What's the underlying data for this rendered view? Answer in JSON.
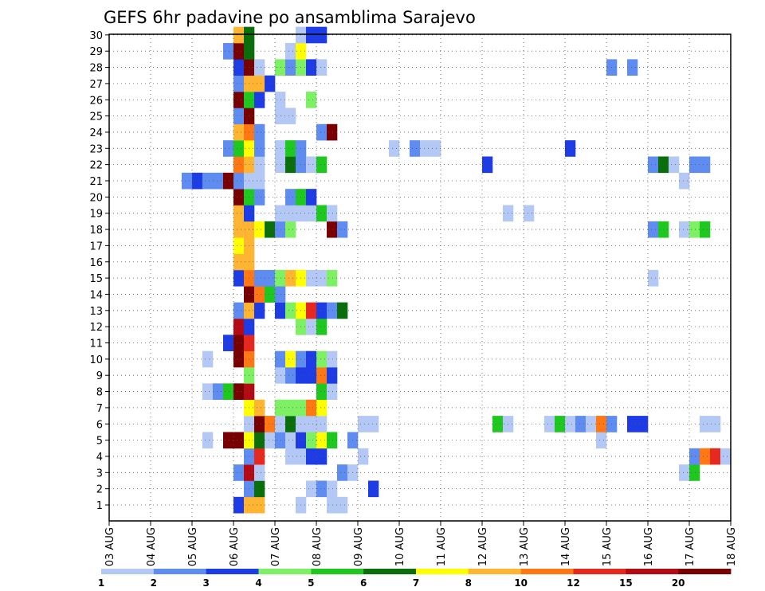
{
  "chart_data": {
    "type": "heatmap",
    "title": "GEFS 6hr padavine po ansamblima Sarajevo",
    "x_ticks": [
      "03 AUG",
      "04 AUG",
      "05 AUG",
      "06 AUG",
      "07 AUG",
      "08 AUG",
      "09 AUG",
      "10 AUG",
      "11 AUG",
      "12 AUG",
      "13 AUG",
      "14 AUG",
      "15 AUG",
      "16 AUG",
      "17 AUG",
      "18 AUG"
    ],
    "y_ticks": [
      "1",
      "2",
      "3",
      "4",
      "5",
      "6",
      "7",
      "8",
      "9",
      "10",
      "11",
      "12",
      "13",
      "14",
      "15",
      "16",
      "17",
      "18",
      "19",
      "20",
      "21",
      "22",
      "23",
      "24",
      "25",
      "26",
      "27",
      "28",
      "29",
      "30"
    ],
    "grid": true,
    "legend_labels": [
      "1",
      "2",
      "3",
      "4",
      "5",
      "6",
      "7",
      "8",
      "10",
      "12",
      "15",
      "20"
    ],
    "legend_colors": [
      "#b4c8f5",
      "#5f8cf0",
      "#1e3ce6",
      "#7ef064",
      "#1ec81e",
      "#0a6e0a",
      "#ffff00",
      "#ffb432",
      "#ff7814",
      "#e6281e",
      "#b40a14",
      "#780000"
    ],
    "cells": {
      "1": [
        [
          12,
          3
        ],
        [
          13,
          8
        ],
        [
          14,
          8
        ],
        [
          18,
          1
        ],
        [
          21,
          1
        ],
        [
          22,
          1
        ],
        [
          78,
          1
        ]
      ],
      "2": [
        [
          13,
          2
        ],
        [
          14,
          6
        ],
        [
          19,
          1
        ],
        [
          20,
          2
        ],
        [
          21,
          1
        ],
        [
          25,
          3
        ]
      ],
      "3": [
        [
          12,
          2
        ],
        [
          13,
          11
        ],
        [
          14,
          1
        ],
        [
          22,
          2
        ],
        [
          23,
          1
        ],
        [
          55,
          1
        ],
        [
          56,
          5
        ],
        [
          60,
          1
        ],
        [
          61,
          3
        ],
        [
          62,
          1
        ],
        [
          63,
          1
        ],
        [
          64,
          1
        ],
        [
          70,
          3
        ],
        [
          71,
          5
        ],
        [
          72,
          2
        ],
        [
          73,
          3
        ]
      ],
      "4": [
        [
          13,
          2
        ],
        [
          14,
          10
        ],
        [
          17,
          1
        ],
        [
          18,
          1
        ],
        [
          19,
          3
        ],
        [
          20,
          3
        ],
        [
          24,
          1
        ],
        [
          56,
          2
        ],
        [
          57,
          9
        ],
        [
          58,
          10
        ],
        [
          59,
          1
        ],
        [
          60,
          1
        ],
        [
          61,
          8
        ],
        [
          62,
          8
        ],
        [
          63,
          1
        ],
        [
          64,
          1
        ],
        [
          70,
          9
        ],
        [
          71,
          1
        ]
      ],
      "5": [
        [
          9,
          1
        ],
        [
          11,
          12
        ],
        [
          12,
          12
        ],
        [
          13,
          7
        ],
        [
          14,
          6
        ],
        [
          15,
          1
        ],
        [
          16,
          2
        ],
        [
          17,
          1
        ],
        [
          18,
          3
        ],
        [
          19,
          4
        ],
        [
          20,
          7
        ],
        [
          21,
          5
        ],
        [
          23,
          2
        ],
        [
          47,
          1
        ],
        [
          63,
          1
        ],
        [
          71,
          1
        ]
      ],
      "6": [
        [
          13,
          1
        ],
        [
          14,
          12
        ],
        [
          15,
          9
        ],
        [
          16,
          1
        ],
        [
          17,
          6
        ],
        [
          18,
          1
        ],
        [
          19,
          1
        ],
        [
          20,
          1
        ],
        [
          24,
          1
        ],
        [
          25,
          1
        ],
        [
          37,
          5
        ],
        [
          38,
          1
        ],
        [
          42,
          1
        ],
        [
          43,
          5
        ],
        [
          44,
          1
        ],
        [
          45,
          2
        ],
        [
          46,
          1
        ],
        [
          47,
          9
        ],
        [
          48,
          2
        ],
        [
          50,
          3
        ],
        [
          51,
          3
        ],
        [
          57,
          1
        ],
        [
          58,
          1
        ],
        [
          67,
          1
        ],
        [
          68,
          2
        ],
        [
          69,
          1
        ],
        [
          70,
          1
        ],
        [
          71,
          1
        ],
        [
          72,
          1
        ],
        [
          73,
          1
        ],
        [
          74,
          1
        ],
        [
          75,
          1
        ]
      ],
      "7": [
        [
          13,
          7
        ],
        [
          14,
          8
        ],
        [
          16,
          4
        ],
        [
          17,
          4
        ],
        [
          18,
          4
        ],
        [
          19,
          9
        ],
        [
          20,
          7
        ]
      ],
      "8": [
        [
          9,
          1
        ],
        [
          10,
          2
        ],
        [
          11,
          5
        ],
        [
          12,
          12
        ],
        [
          13,
          11
        ],
        [
          20,
          5
        ],
        [
          21,
          1
        ]
      ],
      "9": [
        [
          13,
          4
        ],
        [
          16,
          1
        ],
        [
          17,
          2
        ],
        [
          18,
          3
        ],
        [
          19,
          3
        ],
        [
          20,
          9
        ],
        [
          21,
          3
        ],
        [
          68,
          2
        ],
        [
          69,
          1
        ],
        [
          70,
          9
        ],
        [
          71,
          1
        ],
        [
          72,
          1
        ],
        [
          73,
          1
        ],
        [
          74,
          1
        ],
        [
          75,
          1
        ]
      ],
      "10": [
        [
          9,
          1
        ],
        [
          12,
          12
        ],
        [
          13,
          9
        ],
        [
          16,
          2
        ],
        [
          17,
          7
        ],
        [
          18,
          2
        ],
        [
          19,
          3
        ],
        [
          20,
          4
        ],
        [
          21,
          1
        ]
      ],
      "11": [
        [
          11,
          3
        ],
        [
          12,
          12
        ],
        [
          13,
          10
        ]
      ],
      "12": [
        [
          12,
          11
        ],
        [
          13,
          3
        ],
        [
          18,
          4
        ],
        [
          19,
          1
        ],
        [
          20,
          5
        ]
      ],
      "13": [
        [
          12,
          2
        ],
        [
          13,
          8
        ],
        [
          14,
          3
        ],
        [
          16,
          3
        ],
        [
          17,
          4
        ],
        [
          18,
          7
        ],
        [
          19,
          10
        ],
        [
          20,
          3
        ],
        [
          21,
          2
        ],
        [
          22,
          6
        ]
      ],
      "14": [
        [
          13,
          12
        ],
        [
          14,
          9
        ],
        [
          15,
          5
        ],
        [
          16,
          2
        ]
      ],
      "15": [
        [
          12,
          3
        ],
        [
          13,
          9
        ],
        [
          14,
          2
        ],
        [
          15,
          2
        ],
        [
          16,
          4
        ],
        [
          17,
          8
        ],
        [
          18,
          7
        ],
        [
          19,
          1
        ],
        [
          20,
          1
        ],
        [
          21,
          4
        ],
        [
          52,
          1
        ],
        [
          71,
          1
        ]
      ],
      "16": [
        [
          12,
          8
        ],
        [
          13,
          8
        ]
      ],
      "17": [
        [
          12,
          7
        ],
        [
          13,
          8
        ]
      ],
      "18": [
        [
          12,
          8
        ],
        [
          13,
          8
        ],
        [
          14,
          7
        ],
        [
          15,
          6
        ],
        [
          16,
          2
        ],
        [
          17,
          4
        ],
        [
          21,
          12
        ],
        [
          22,
          2
        ],
        [
          52,
          2
        ],
        [
          53,
          5
        ],
        [
          55,
          1
        ],
        [
          56,
          4
        ],
        [
          57,
          5
        ]
      ],
      "19": [
        [
          12,
          8
        ],
        [
          13,
          3
        ],
        [
          16,
          1
        ],
        [
          17,
          1
        ],
        [
          18,
          1
        ],
        [
          19,
          1
        ],
        [
          20,
          5
        ],
        [
          21,
          1
        ],
        [
          38,
          1
        ],
        [
          40,
          1
        ]
      ],
      "20": [
        [
          12,
          12
        ],
        [
          13,
          5
        ],
        [
          14,
          2
        ],
        [
          17,
          2
        ],
        [
          18,
          5
        ],
        [
          19,
          3
        ]
      ],
      "21": [
        [
          7,
          2
        ],
        [
          8,
          3
        ],
        [
          9,
          2
        ],
        [
          10,
          2
        ],
        [
          11,
          12
        ],
        [
          12,
          2
        ],
        [
          13,
          1
        ],
        [
          14,
          1
        ],
        [
          55,
          1
        ],
        [
          60,
          2
        ]
      ],
      "22": [
        [
          12,
          9
        ],
        [
          13,
          8
        ],
        [
          14,
          1
        ],
        [
          16,
          1
        ],
        [
          17,
          6
        ],
        [
          18,
          2
        ],
        [
          19,
          1
        ],
        [
          20,
          5
        ],
        [
          36,
          3
        ],
        [
          52,
          2
        ],
        [
          53,
          6
        ],
        [
          54,
          1
        ],
        [
          56,
          2
        ],
        [
          57,
          2
        ],
        [
          61,
          6
        ],
        [
          62,
          1
        ]
      ],
      "23": [
        [
          11,
          2
        ],
        [
          12,
          5
        ],
        [
          13,
          7
        ],
        [
          14,
          2
        ],
        [
          16,
          1
        ],
        [
          17,
          5
        ],
        [
          18,
          2
        ],
        [
          27,
          1
        ],
        [
          29,
          2
        ],
        [
          30,
          1
        ],
        [
          31,
          1
        ],
        [
          44,
          3
        ]
      ],
      "24": [
        [
          12,
          8
        ],
        [
          13,
          9
        ],
        [
          14,
          2
        ],
        [
          20,
          2
        ],
        [
          21,
          12
        ],
        [
          60,
          1
        ]
      ],
      "25": [
        [
          12,
          2
        ],
        [
          13,
          12
        ],
        [
          16,
          1
        ],
        [
          17,
          1
        ]
      ],
      "26": [
        [
          12,
          12
        ],
        [
          13,
          5
        ],
        [
          14,
          3
        ],
        [
          16,
          1
        ],
        [
          19,
          4
        ]
      ],
      "27": [
        [
          12,
          2
        ],
        [
          13,
          8
        ],
        [
          14,
          8
        ],
        [
          15,
          3
        ]
      ],
      "28": [
        [
          12,
          3
        ],
        [
          13,
          12
        ],
        [
          14,
          1
        ],
        [
          16,
          4
        ],
        [
          17,
          2
        ],
        [
          18,
          4
        ],
        [
          19,
          3
        ],
        [
          20,
          1
        ],
        [
          48,
          2
        ],
        [
          50,
          2
        ]
      ],
      "29": [
        [
          11,
          2
        ],
        [
          12,
          12
        ],
        [
          13,
          6
        ],
        [
          17,
          1
        ],
        [
          18,
          7
        ],
        [
          60,
          1
        ]
      ],
      "30": [
        [
          12,
          8
        ],
        [
          13,
          6
        ],
        [
          18,
          1
        ],
        [
          19,
          3
        ],
        [
          20,
          3
        ]
      ]
    }
  }
}
